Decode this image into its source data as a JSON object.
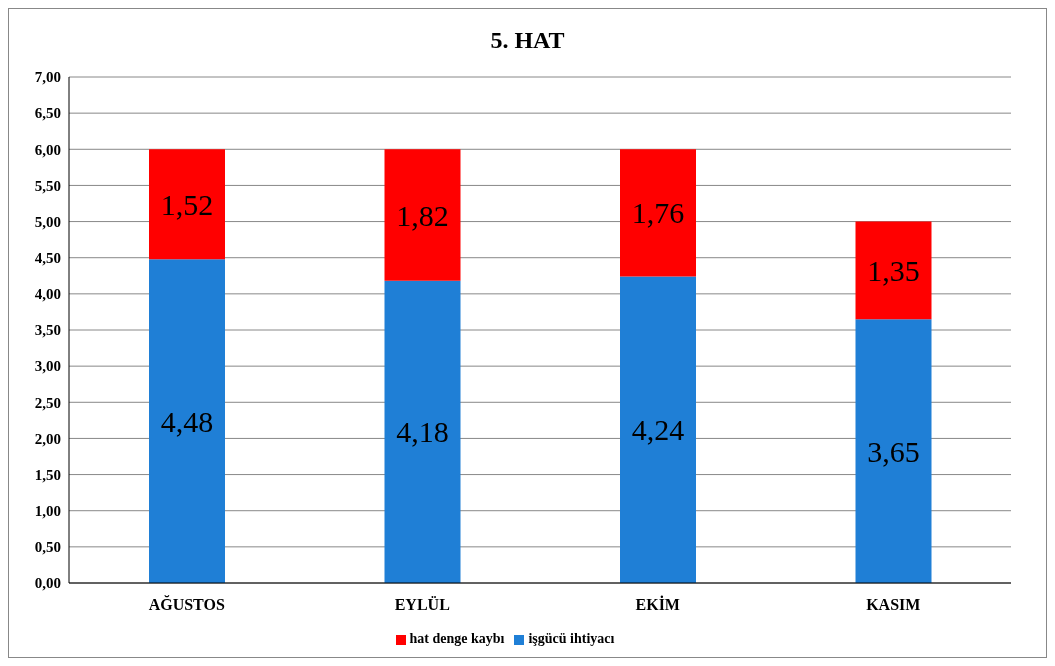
{
  "chart_data": {
    "type": "bar",
    "title": "5. HAT",
    "categories": [
      "AĞUSTOS",
      "EYLÜL",
      "EKİM",
      "KASIM"
    ],
    "stacked": true,
    "series": [
      {
        "name": "işgücü ihtiyacı",
        "color": "#1f7fd6",
        "values": [
          4.48,
          4.18,
          4.24,
          3.65
        ],
        "value_labels": [
          "4,48",
          "4,18",
          "4,24",
          "3,65"
        ]
      },
      {
        "name": "hat denge kaybı",
        "color": "#ff0000",
        "values": [
          1.52,
          1.82,
          1.76,
          1.35
        ],
        "value_labels": [
          "1,52",
          "1,82",
          "1,76",
          "1,35"
        ]
      }
    ],
    "ylim": [
      0,
      7
    ],
    "yticks": [
      {
        "value": 0,
        "label": "0,00"
      },
      {
        "value": 0.5,
        "label": "0,50"
      },
      {
        "value": 1,
        "label": "1,00"
      },
      {
        "value": 1.5,
        "label": "1,50"
      },
      {
        "value": 2,
        "label": "2,00"
      },
      {
        "value": 2.5,
        "label": "2,50"
      },
      {
        "value": 3,
        "label": "3,00"
      },
      {
        "value": 3.5,
        "label": "3,50"
      },
      {
        "value": 4,
        "label": "4,00"
      },
      {
        "value": 4.5,
        "label": "4,50"
      },
      {
        "value": 5,
        "label": "5,00"
      },
      {
        "value": 5.5,
        "label": "5,50"
      },
      {
        "value": 6,
        "label": "6,00"
      },
      {
        "value": 6.5,
        "label": "6,50"
      },
      {
        "value": 7,
        "label": "7,00"
      }
    ],
    "grid": "y",
    "legend": "bottom"
  }
}
